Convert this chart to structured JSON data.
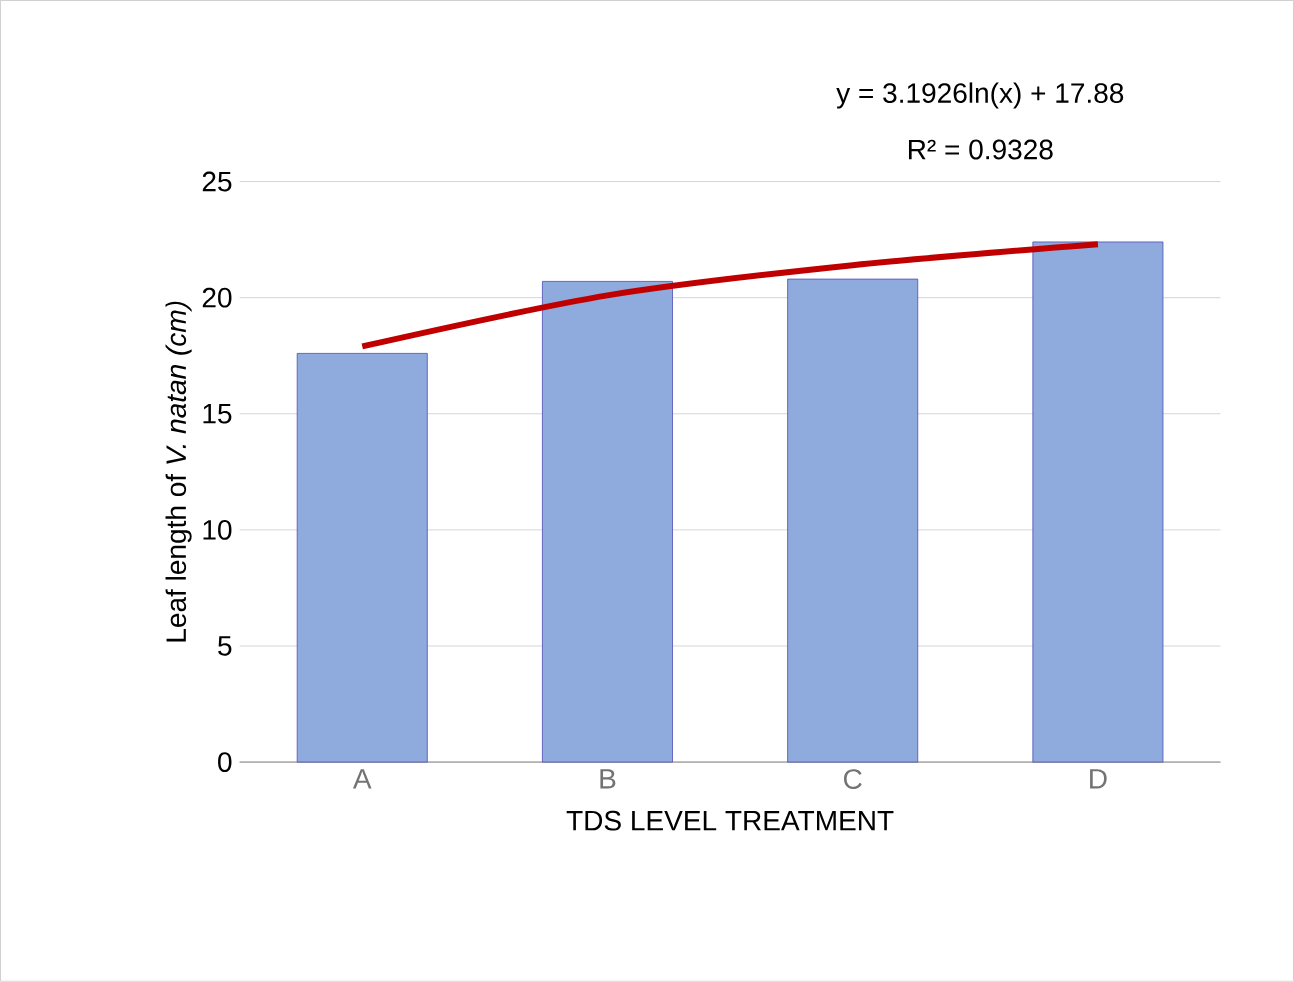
{
  "chart_data": {
    "type": "bar",
    "xlabel": "TDS LEVEL TREATMENT",
    "ylabel": "Leaf length of *V. natan (cm)*",
    "categories": [
      "A",
      "B",
      "C",
      "D"
    ],
    "series": [
      {
        "color": "#8faadc",
        "values": [
          17.6,
          20.7,
          20.8,
          22.4
        ]
      },
      {
        "type": "line",
        "color": "#c00000",
        "values": [
          17.9,
          20.1,
          21.4,
          22.3
        ]
      }
    ],
    "ylim": [
      0,
      25
    ],
    "yticks": [
      0,
      5,
      10,
      15,
      20,
      25
    ],
    "grid": "y",
    "legend": false,
    "annotations": [
      "y = 3.1926ln(x) + 17.88",
      "R² = 0.9328"
    ]
  }
}
